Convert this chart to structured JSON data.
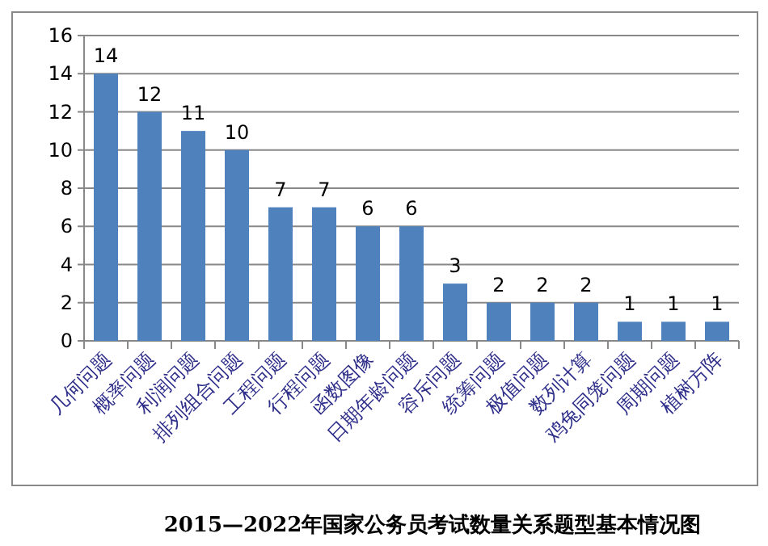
{
  "chart_data": {
    "type": "bar",
    "title": "2015—2022年国家公务员考试数量关系题型基本情况图",
    "categories": [
      "几何问题",
      "概率问题",
      "利润问题",
      "排列组合问题",
      "工程问题",
      "行程问题",
      "函数图像",
      "日期年龄问题",
      "容斥问题",
      "统筹问题",
      "极值问题",
      "数列计算",
      "鸡兔同笼问题",
      "周期问题",
      "植树方阵"
    ],
    "values": [
      14,
      12,
      11,
      10,
      7,
      7,
      6,
      6,
      3,
      2,
      2,
      2,
      1,
      1,
      1
    ],
    "color": "#4f81bd",
    "ylim": [
      0,
      16
    ],
    "yticks": [
      0,
      2,
      4,
      6,
      8,
      10,
      12,
      14,
      16
    ],
    "grid": "y",
    "data_labels": true
  }
}
